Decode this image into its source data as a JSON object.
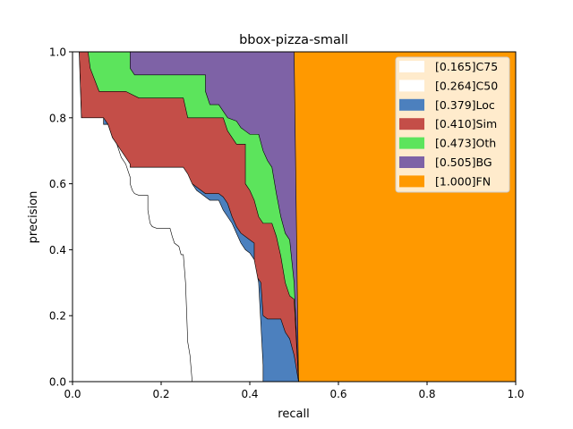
{
  "chart_data": {
    "type": "area",
    "title": "bbox-pizza-small",
    "xlabel": "recall",
    "ylabel": "precision",
    "xlim": [
      0,
      1
    ],
    "ylim": [
      0,
      1
    ],
    "xticks": [
      "0.0",
      "0.2",
      "0.4",
      "0.6",
      "0.8",
      "1.0"
    ],
    "yticks": [
      "0.0",
      "0.2",
      "0.4",
      "0.6",
      "0.8",
      "1.0"
    ],
    "grid": false,
    "legend_position": "top-right",
    "series": [
      {
        "name": "[0.165]C75",
        "color": "#ffffff",
        "points": [
          [
            0.0,
            1.0
          ],
          [
            0.015,
            1.0
          ],
          [
            0.02,
            0.8
          ],
          [
            0.07,
            0.8
          ],
          [
            0.07,
            0.78
          ],
          [
            0.08,
            0.78
          ],
          [
            0.09,
            0.74
          ],
          [
            0.1,
            0.72
          ],
          [
            0.11,
            0.68
          ],
          [
            0.12,
            0.66
          ],
          [
            0.13,
            0.62
          ],
          [
            0.13,
            0.6
          ],
          [
            0.135,
            0.58
          ],
          [
            0.14,
            0.57
          ],
          [
            0.15,
            0.565
          ],
          [
            0.17,
            0.565
          ],
          [
            0.17,
            0.52
          ],
          [
            0.175,
            0.48
          ],
          [
            0.18,
            0.47
          ],
          [
            0.19,
            0.465
          ],
          [
            0.22,
            0.465
          ],
          [
            0.225,
            0.44
          ],
          [
            0.23,
            0.42
          ],
          [
            0.24,
            0.41
          ],
          [
            0.245,
            0.385
          ],
          [
            0.25,
            0.385
          ],
          [
            0.255,
            0.3
          ],
          [
            0.26,
            0.12
          ],
          [
            0.265,
            0.08
          ],
          [
            0.27,
            0.0
          ]
        ]
      },
      {
        "name": "[0.264]C50",
        "color": "#ffffff",
        "points": [
          [
            0.0,
            1.0
          ],
          [
            0.015,
            1.0
          ],
          [
            0.02,
            0.8
          ],
          [
            0.07,
            0.8
          ],
          [
            0.07,
            0.78
          ],
          [
            0.08,
            0.78
          ],
          [
            0.08,
            0.76
          ],
          [
            0.09,
            0.73
          ],
          [
            0.1,
            0.72
          ],
          [
            0.11,
            0.7
          ],
          [
            0.12,
            0.68
          ],
          [
            0.13,
            0.66
          ],
          [
            0.13,
            0.65
          ],
          [
            0.25,
            0.65
          ],
          [
            0.26,
            0.63
          ],
          [
            0.27,
            0.6
          ],
          [
            0.28,
            0.58
          ],
          [
            0.29,
            0.57
          ],
          [
            0.3,
            0.56
          ],
          [
            0.31,
            0.55
          ],
          [
            0.33,
            0.55
          ],
          [
            0.34,
            0.52
          ],
          [
            0.35,
            0.5
          ],
          [
            0.36,
            0.48
          ],
          [
            0.37,
            0.45
          ],
          [
            0.38,
            0.42
          ],
          [
            0.39,
            0.4
          ],
          [
            0.4,
            0.39
          ],
          [
            0.41,
            0.37
          ],
          [
            0.42,
            0.3
          ],
          [
            0.43,
            0.05
          ],
          [
            0.43,
            0.0
          ]
        ]
      },
      {
        "name": "[0.379]Loc",
        "color": "#4c80be",
        "points": [
          [
            0.0,
            1.0
          ],
          [
            0.015,
            1.0
          ],
          [
            0.02,
            0.8
          ],
          [
            0.07,
            0.8
          ],
          [
            0.08,
            0.78
          ],
          [
            0.09,
            0.74
          ],
          [
            0.1,
            0.72
          ],
          [
            0.11,
            0.69
          ],
          [
            0.12,
            0.67
          ],
          [
            0.13,
            0.65
          ],
          [
            0.25,
            0.65
          ],
          [
            0.26,
            0.62
          ],
          [
            0.27,
            0.6
          ],
          [
            0.28,
            0.59
          ],
          [
            0.3,
            0.57
          ],
          [
            0.33,
            0.57
          ],
          [
            0.34,
            0.56
          ],
          [
            0.35,
            0.54
          ],
          [
            0.36,
            0.5
          ],
          [
            0.37,
            0.47
          ],
          [
            0.38,
            0.45
          ],
          [
            0.39,
            0.44
          ],
          [
            0.4,
            0.43
          ],
          [
            0.41,
            0.42
          ],
          [
            0.41,
            0.33
          ],
          [
            0.425,
            0.3
          ],
          [
            0.43,
            0.2
          ],
          [
            0.44,
            0.19
          ],
          [
            0.47,
            0.19
          ],
          [
            0.48,
            0.15
          ],
          [
            0.49,
            0.13
          ],
          [
            0.5,
            0.08
          ],
          [
            0.51,
            0.0
          ]
        ]
      },
      {
        "name": "[0.410]Sim",
        "color": "#c44e48",
        "points": [
          [
            0.0,
            1.0
          ],
          [
            0.035,
            1.0
          ],
          [
            0.04,
            0.95
          ],
          [
            0.06,
            0.88
          ],
          [
            0.12,
            0.88
          ],
          [
            0.15,
            0.86
          ],
          [
            0.2,
            0.86
          ],
          [
            0.25,
            0.86
          ],
          [
            0.26,
            0.8
          ],
          [
            0.28,
            0.8
          ],
          [
            0.3,
            0.8
          ],
          [
            0.34,
            0.8
          ],
          [
            0.35,
            0.76
          ],
          [
            0.36,
            0.74
          ],
          [
            0.37,
            0.72
          ],
          [
            0.39,
            0.72
          ],
          [
            0.39,
            0.6
          ],
          [
            0.4,
            0.58
          ],
          [
            0.41,
            0.55
          ],
          [
            0.42,
            0.5
          ],
          [
            0.43,
            0.48
          ],
          [
            0.45,
            0.48
          ],
          [
            0.46,
            0.44
          ],
          [
            0.47,
            0.38
          ],
          [
            0.48,
            0.3
          ],
          [
            0.49,
            0.26
          ],
          [
            0.5,
            0.25
          ],
          [
            0.51,
            0.0
          ]
        ]
      },
      {
        "name": "[0.473]Oth",
        "color": "#5ce45c",
        "points": [
          [
            0.0,
            1.0
          ],
          [
            0.13,
            1.0
          ],
          [
            0.13,
            0.95
          ],
          [
            0.14,
            0.93
          ],
          [
            0.2,
            0.93
          ],
          [
            0.3,
            0.93
          ],
          [
            0.3,
            0.88
          ],
          [
            0.31,
            0.84
          ],
          [
            0.33,
            0.84
          ],
          [
            0.35,
            0.8
          ],
          [
            0.37,
            0.79
          ],
          [
            0.38,
            0.77
          ],
          [
            0.39,
            0.76
          ],
          [
            0.4,
            0.75
          ],
          [
            0.42,
            0.75
          ],
          [
            0.43,
            0.7
          ],
          [
            0.44,
            0.67
          ],
          [
            0.45,
            0.65
          ],
          [
            0.46,
            0.57
          ],
          [
            0.47,
            0.5
          ],
          [
            0.48,
            0.45
          ],
          [
            0.49,
            0.43
          ],
          [
            0.5,
            0.3
          ],
          [
            0.51,
            0.0
          ]
        ]
      },
      {
        "name": "[0.505]BG",
        "color": "#7e62a6",
        "points": [
          [
            0.0,
            1.0
          ],
          [
            0.5,
            1.0
          ],
          [
            0.51,
            0.0
          ]
        ]
      },
      {
        "name": "[1.000]FN",
        "color": "#ff9900",
        "points": [
          [
            0.0,
            1.0
          ],
          [
            1.0,
            1.0
          ],
          [
            1.0,
            0.0
          ]
        ]
      }
    ]
  }
}
